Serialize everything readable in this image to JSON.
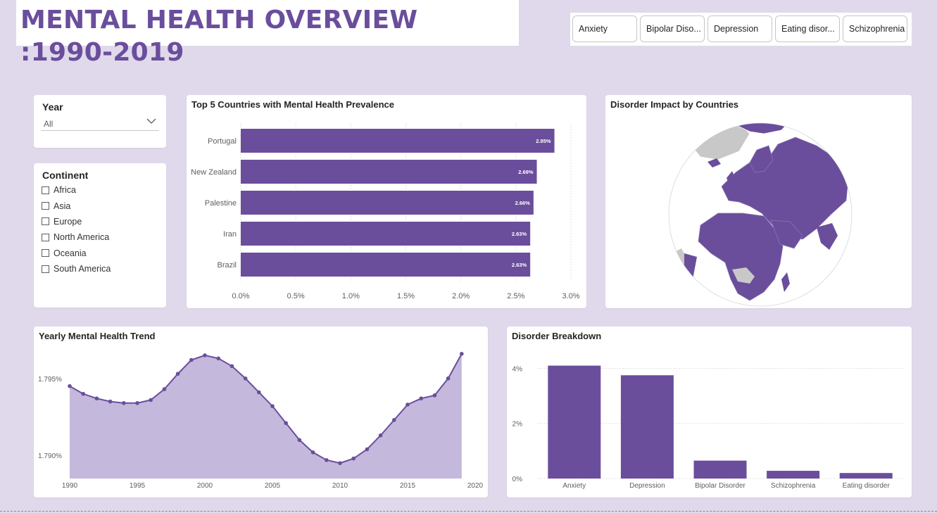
{
  "header": {
    "title": "MENTAL HEALTH OVERVIEW :1990-2019",
    "disorder_filters": [
      "Anxiety",
      "Bipolar Diso...",
      "Depression",
      "Eating disor...",
      "Schizophrenia"
    ]
  },
  "year_slicer": {
    "label": "Year",
    "selected": "All"
  },
  "continent_slicer": {
    "label": "Continent",
    "options": [
      "Africa",
      "Asia",
      "Europe",
      "North America",
      "Oceania",
      "South America"
    ]
  },
  "top5": {
    "title": "Top 5 Countries with Mental Health Prevalence"
  },
  "map": {
    "title": "Disorder Impact by Countries"
  },
  "trend": {
    "title": "Yearly Mental Health Trend"
  },
  "breakdown": {
    "title": "Disorder Breakdown"
  },
  "colors": {
    "accent": "#6a4e9c",
    "area_fill": "#c4b8dc",
    "background": "#e0d9eb",
    "no_data": "#c8c8c8"
  },
  "chart_data": [
    {
      "type": "bar",
      "orientation": "horizontal",
      "title": "Top 5 Countries with Mental Health Prevalence",
      "categories": [
        "Portugal",
        "New Zealand",
        "Palestine",
        "Iran",
        "Brazil"
      ],
      "values": [
        2.85,
        2.69,
        2.66,
        2.63,
        2.63
      ],
      "data_labels": [
        "2.85%",
        "2.69%",
        "2.66%",
        "2.63%",
        "2.63%"
      ],
      "xlim": [
        0,
        3.0
      ],
      "xticks": [
        "0.0%",
        "0.5%",
        "1.0%",
        "1.5%",
        "2.0%",
        "2.5%",
        "3.0%"
      ],
      "grid": true
    },
    {
      "type": "area",
      "title": "Yearly Mental Health Trend",
      "x": [
        1990,
        1991,
        1992,
        1993,
        1994,
        1995,
        1996,
        1997,
        1998,
        1999,
        2000,
        2001,
        2002,
        2003,
        2004,
        2005,
        2006,
        2007,
        2008,
        2009,
        2010,
        2011,
        2012,
        2013,
        2014,
        2015,
        2016,
        2017,
        2018,
        2019
      ],
      "values": [
        1.7945,
        1.794,
        1.7937,
        1.7935,
        1.7934,
        1.7934,
        1.7936,
        1.7943,
        1.7953,
        1.7962,
        1.7965,
        1.7963,
        1.7958,
        1.795,
        1.7941,
        1.7932,
        1.7921,
        1.791,
        1.7902,
        1.7897,
        1.7895,
        1.7898,
        1.7904,
        1.7913,
        1.7923,
        1.7933,
        1.7937,
        1.7939,
        1.795,
        1.7966
      ],
      "xlim": [
        1990,
        2020
      ],
      "ylim": [
        1.7885,
        1.797
      ],
      "xticks": [
        "1990",
        "1995",
        "2000",
        "2005",
        "2010",
        "2015",
        "2020"
      ],
      "yticks": [
        {
          "value": 1.795,
          "label": "1.795%"
        },
        {
          "value": 1.79,
          "label": "1.790%"
        }
      ]
    },
    {
      "type": "bar",
      "title": "Disorder Breakdown",
      "categories": [
        "Anxiety",
        "Depression",
        "Bipolar Disorder",
        "Schizophrenia",
        "Eating disorder"
      ],
      "values": [
        4.1,
        3.75,
        0.65,
        0.28,
        0.2
      ],
      "ylim": [
        0,
        4.6
      ],
      "yticks": [
        {
          "value": 0,
          "label": "0%"
        },
        {
          "value": 2,
          "label": "2%"
        },
        {
          "value": 4,
          "label": "4%"
        }
      ],
      "grid": true
    }
  ]
}
